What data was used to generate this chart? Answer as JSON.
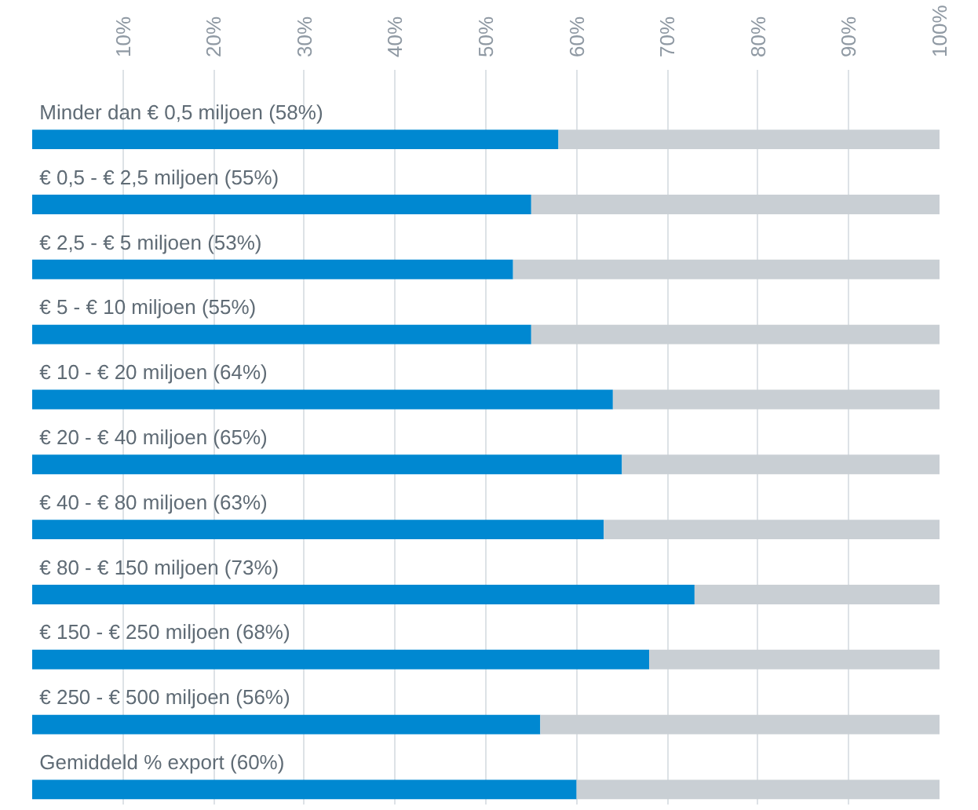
{
  "chart_data": {
    "type": "bar",
    "orientation": "horizontal",
    "stacked": true,
    "categories": [
      "Minder dan € 0,5 miljoen (58%)",
      "€ 0,5  -  € 2,5 miljoen (55%)",
      "€ 2,5  -  € 5 miljoen (53%)",
      "€ 5  -  € 10 miljoen (55%)",
      "€ 10  -  € 20 miljoen (64%)",
      "€ 20  -  € 40 miljoen (65%)",
      "€ 40  -  € 80 miljoen (63%)",
      "€ 80  -  € 150 miljoen (73%)",
      "€ 150  -  € 250 miljoen (68%)",
      "€ 250  -  € 500 miljoen (56%)",
      "Gemiddeld % export (60%)"
    ],
    "series": [
      {
        "color": "#0088d1",
        "values": [
          58,
          55,
          53,
          55,
          64,
          65,
          63,
          73,
          68,
          56,
          60
        ]
      },
      {
        "color": "#c9cfd4",
        "values": [
          42,
          45,
          47,
          45,
          36,
          35,
          37,
          27,
          32,
          44,
          40
        ]
      }
    ],
    "xlim": [
      0,
      100
    ],
    "xticks": [
      {
        "value": 10,
        "label": "10%"
      },
      {
        "value": 20,
        "label": "20%"
      },
      {
        "value": 30,
        "label": "30%"
      },
      {
        "value": 40,
        "label": "40%"
      },
      {
        "value": 50,
        "label": "50%"
      },
      {
        "value": 60,
        "label": "60%"
      },
      {
        "value": 70,
        "label": "70%"
      },
      {
        "value": 80,
        "label": "80%"
      },
      {
        "value": 90,
        "label": "90%"
      },
      {
        "value": 100,
        "label": "100%"
      }
    ],
    "grid": "x"
  }
}
